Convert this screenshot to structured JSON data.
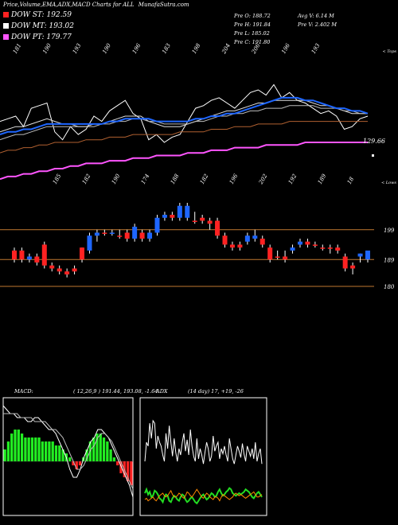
{
  "header": {
    "title": "Price,Volume,EMA,ADX,MACD Charts for ALL",
    "site": "MunafaSutra.com",
    "legend": [
      {
        "label": "DOW ST:",
        "value": "192.59",
        "color": "#ff2222"
      },
      {
        "label": "DOW MT:",
        "value": "193.02",
        "color": "#ffffff"
      },
      {
        "label": "DOW PT:",
        "value": "179.77",
        "color": "#ff55ff"
      }
    ],
    "stats_col1": [
      "Pre  O: 188.72",
      "Pre  H: 191.84",
      "Pre  L: 185.02",
      "Pre  C: 191.80"
    ],
    "stats_col2": [
      "Avg V: 6.14  M",
      "Pre  V: 2.402  M"
    ]
  },
  "chart_data": [
    {
      "type": "line",
      "name": "ema_panel",
      "top_tick_labels": [
        "181",
        "190",
        "193",
        "190",
        "196",
        "183",
        "198",
        "204",
        "206",
        "196",
        "193"
      ],
      "bottom_tick_labels": [
        "185",
        "182",
        "190",
        "174",
        "188",
        "182",
        "196",
        "202",
        "192",
        "189",
        "18"
      ],
      "corner_top": "< Tops",
      "corner_bottom": "< Lows",
      "last_price_label": "129.66",
      "series": [
        {
          "key": "price",
          "color": "#ffffff",
          "values": [
            188,
            189,
            190,
            186,
            193,
            194,
            195,
            184,
            181,
            186,
            183,
            185,
            190,
            188,
            192,
            194,
            196,
            191,
            189,
            181,
            183,
            180,
            182,
            183,
            188,
            193,
            194,
            196,
            197,
            195,
            193,
            196,
            199,
            200,
            198,
            202,
            197,
            199,
            196,
            195,
            193,
            191,
            192,
            190,
            185,
            186,
            189,
            190
          ]
        },
        {
          "key": "ema_short",
          "color": "#dddddd",
          "values": [
            184,
            185,
            186,
            186,
            187,
            188,
            189,
            188,
            187,
            187,
            186,
            186,
            187,
            187,
            188,
            189,
            190,
            190,
            190,
            188,
            187,
            186,
            186,
            186,
            187,
            188,
            189,
            190,
            191,
            192,
            192,
            193,
            194,
            195,
            195,
            196,
            196,
            196,
            196,
            196,
            195,
            194,
            194,
            193,
            192,
            191,
            191,
            191
          ]
        },
        {
          "key": "ema_mid",
          "color": "#bbbbbb",
          "values": [
            181,
            182,
            183,
            183,
            184,
            185,
            186,
            186,
            186,
            186,
            186,
            186,
            186,
            187,
            187,
            188,
            188,
            189,
            189,
            188,
            188,
            187,
            187,
            187,
            187,
            188,
            188,
            189,
            190,
            190,
            191,
            191,
            192,
            192,
            193,
            193,
            193,
            194,
            194,
            194,
            194,
            193,
            193,
            193,
            192,
            192,
            191,
            191
          ]
        },
        {
          "key": "ema_blue",
          "color": "#1e66ff",
          "values": [
            183,
            184,
            184,
            185,
            185,
            186,
            187,
            187,
            187,
            187,
            187,
            187,
            187,
            187,
            188,
            188,
            189,
            189,
            189,
            189,
            188,
            188,
            188,
            188,
            188,
            189,
            189,
            190,
            190,
            191,
            191,
            192,
            193,
            194,
            195,
            196,
            197,
            197,
            197,
            196,
            196,
            195,
            194,
            193,
            193,
            192,
            192,
            191
          ]
        },
        {
          "key": "ema_long",
          "color": "#b06030",
          "values": [
            176,
            177,
            177,
            178,
            178,
            179,
            179,
            180,
            180,
            180,
            180,
            181,
            181,
            181,
            182,
            182,
            182,
            183,
            183,
            183,
            183,
            183,
            183,
            184,
            184,
            184,
            184,
            185,
            185,
            185,
            186,
            186,
            186,
            187,
            187,
            187,
            187,
            188,
            188,
            188,
            188,
            188,
            188,
            188,
            188,
            188,
            188,
            188
          ]
        },
        {
          "key": "ema_pt",
          "color": "#ff55ff",
          "values": [
            166,
            167,
            167,
            168,
            168,
            169,
            169,
            170,
            170,
            171,
            171,
            172,
            172,
            172,
            173,
            173,
            173,
            174,
            174,
            174,
            175,
            175,
            175,
            175,
            176,
            176,
            176,
            177,
            177,
            177,
            178,
            178,
            178,
            178,
            179,
            179,
            179,
            179,
            179,
            180,
            180,
            180,
            180,
            180,
            180,
            180,
            180,
            180
          ]
        }
      ]
    },
    {
      "type": "candlestick",
      "name": "price_panel",
      "ylabels": [
        "199",
        "189",
        "180"
      ],
      "ylevels": [
        199,
        189,
        180
      ],
      "xlabels": [],
      "candles": [
        {
          "o": 189,
          "c": 192,
          "h": 193,
          "l": 188,
          "up": false
        },
        {
          "o": 192,
          "c": 189,
          "h": 193,
          "l": 188,
          "up": false
        },
        {
          "o": 189,
          "c": 190,
          "h": 191,
          "l": 188,
          "up": true
        },
        {
          "o": 190,
          "c": 188,
          "h": 191,
          "l": 187,
          "up": false
        },
        {
          "o": 194,
          "c": 187,
          "h": 195,
          "l": 186,
          "up": false
        },
        {
          "o": 187,
          "c": 186,
          "h": 188,
          "l": 185,
          "up": false
        },
        {
          "o": 186,
          "c": 185,
          "h": 187,
          "l": 184,
          "up": false
        },
        {
          "o": 185,
          "c": 184,
          "h": 186,
          "l": 183,
          "up": false
        },
        {
          "o": 186,
          "c": 185,
          "h": 187,
          "l": 184,
          "up": false
        },
        {
          "o": 193,
          "c": 189,
          "h": 193,
          "l": 188,
          "up": false
        },
        {
          "o": 192,
          "c": 197,
          "h": 198,
          "l": 191,
          "up": true
        },
        {
          "o": 197,
          "c": 198,
          "h": 199,
          "l": 195,
          "up": true
        },
        {
          "o": 198,
          "c": 198,
          "h": 199,
          "l": 197,
          "up": false
        },
        {
          "o": 198,
          "c": 198,
          "h": 199,
          "l": 197,
          "up": true
        },
        {
          "o": 197,
          "c": 197,
          "h": 199,
          "l": 196,
          "up": false
        },
        {
          "o": 198,
          "c": 196,
          "h": 199,
          "l": 195,
          "up": false
        },
        {
          "o": 196,
          "c": 200,
          "h": 201,
          "l": 195,
          "up": true
        },
        {
          "o": 198,
          "c": 196,
          "h": 199,
          "l": 195,
          "up": false
        },
        {
          "o": 196,
          "c": 198,
          "h": 199,
          "l": 195,
          "up": true
        },
        {
          "o": 198,
          "c": 203,
          "h": 204,
          "l": 197,
          "up": true
        },
        {
          "o": 203,
          "c": 204,
          "h": 205,
          "l": 202,
          "up": true
        },
        {
          "o": 204,
          "c": 203,
          "h": 205,
          "l": 202,
          "up": false
        },
        {
          "o": 203,
          "c": 207,
          "h": 208,
          "l": 202,
          "up": true
        },
        {
          "o": 207,
          "c": 203,
          "h": 208,
          "l": 202,
          "up": true
        },
        {
          "o": 202,
          "c": 202,
          "h": 205,
          "l": 201,
          "up": false
        },
        {
          "o": 203,
          "c": 202,
          "h": 204,
          "l": 201,
          "up": false
        },
        {
          "o": 202,
          "c": 201,
          "h": 203,
          "l": 199,
          "up": false
        },
        {
          "o": 202,
          "c": 197,
          "h": 203,
          "l": 196,
          "up": false
        },
        {
          "o": 197,
          "c": 194,
          "h": 198,
          "l": 193,
          "up": false
        },
        {
          "o": 194,
          "c": 193,
          "h": 195,
          "l": 192,
          "up": false
        },
        {
          "o": 194,
          "c": 193,
          "h": 195,
          "l": 192,
          "up": false
        },
        {
          "o": 195,
          "c": 197,
          "h": 198,
          "l": 194,
          "up": true
        },
        {
          "o": 197,
          "c": 196,
          "h": 199,
          "l": 195,
          "up": true
        },
        {
          "o": 196,
          "c": 194,
          "h": 197,
          "l": 193,
          "up": false
        },
        {
          "o": 193,
          "c": 189,
          "h": 194,
          "l": 188,
          "up": false
        },
        {
          "o": 190,
          "c": 190,
          "h": 192,
          "l": 189,
          "up": false
        },
        {
          "o": 190,
          "c": 189,
          "h": 192,
          "l": 188,
          "up": false
        },
        {
          "o": 192,
          "c": 193,
          "h": 194,
          "l": 191,
          "up": true
        },
        {
          "o": 194,
          "c": 195,
          "h": 196,
          "l": 193,
          "up": true
        },
        {
          "o": 195,
          "c": 194,
          "h": 196,
          "l": 193,
          "up": false
        },
        {
          "o": 194,
          "c": 194,
          "h": 195,
          "l": 193,
          "up": false
        },
        {
          "o": 193,
          "c": 193,
          "h": 194,
          "l": 192,
          "up": false
        },
        {
          "o": 193,
          "c": 193,
          "h": 194,
          "l": 191,
          "up": false
        },
        {
          "o": 193,
          "c": 192,
          "h": 194,
          "l": 191,
          "up": false
        },
        {
          "o": 190,
          "c": 186,
          "h": 191,
          "l": 185,
          "up": false
        },
        {
          "o": 187,
          "c": 186,
          "h": 188,
          "l": 184,
          "up": false
        },
        {
          "o": 190,
          "c": 191,
          "h": 191,
          "l": 188,
          "up": true
        },
        {
          "o": 189,
          "c": 192,
          "h": 192,
          "l": 188,
          "up": true
        }
      ]
    },
    {
      "type": "bar",
      "name": "macd_panel",
      "title": "MACD:",
      "params": "( 12,26,9 ) 191.44,  193.08,  -1.64",
      "histogram": [
        3,
        5,
        7,
        8,
        8,
        7,
        6,
        6,
        6,
        6,
        6,
        5,
        5,
        5,
        5,
        4,
        4,
        3,
        2,
        1,
        -1,
        -2,
        -1,
        1,
        3,
        5,
        6,
        7,
        7,
        6,
        5,
        3,
        1,
        -1,
        -3,
        -4,
        -5,
        -6
      ],
      "macd_line": [
        14,
        13,
        12,
        12,
        11,
        11,
        11,
        10,
        10,
        11,
        11,
        10,
        9,
        8,
        8,
        7,
        5,
        3,
        1,
        -2,
        -4,
        -4,
        -2,
        1,
        3,
        5,
        6,
        8,
        8,
        7,
        6,
        4,
        2,
        0,
        -2,
        -4,
        -6,
        -9
      ],
      "signal_line": [
        12,
        12,
        12,
        12,
        12,
        11,
        11,
        11,
        11,
        10,
        10,
        10,
        10,
        9,
        8,
        8,
        7,
        6,
        4,
        2,
        0,
        -2,
        -2,
        -1,
        1,
        3,
        4,
        6,
        7,
        7,
        6,
        5,
        3,
        1,
        -1,
        -3,
        -5,
        -7
      ]
    },
    {
      "type": "line",
      "name": "adx_panel",
      "title": "ADX",
      "params": "(14  day) 17,  +19,  -26",
      "series": [
        {
          "key": "adx",
          "color": "#ffffff",
          "values": [
            40,
            55,
            52,
            70,
            58,
            72,
            70,
            50,
            60,
            55,
            52,
            45,
            40,
            62,
            50,
            68,
            55,
            44,
            58,
            47,
            40,
            50,
            45,
            55,
            62,
            48,
            57,
            45,
            65,
            52,
            44,
            40,
            58,
            42,
            50,
            45,
            38,
            47,
            55,
            50,
            40,
            44,
            60,
            48,
            52,
            55,
            42,
            50,
            46,
            52,
            45,
            40,
            58,
            50,
            42,
            38,
            45,
            52,
            48,
            43,
            54,
            46,
            40,
            52,
            48,
            44,
            50,
            42,
            55,
            40,
            46,
            50,
            38
          ]
        },
        {
          "key": "plus_di",
          "color": "#22dd22",
          "values": [
            15,
            18,
            14,
            16,
            12,
            13,
            17,
            16,
            14,
            11,
            10,
            8,
            12,
            14,
            13,
            9,
            8,
            11,
            13,
            12,
            10,
            9,
            12,
            14,
            13,
            10,
            8,
            9,
            11,
            12,
            10,
            8,
            7,
            9,
            11,
            13,
            14,
            12,
            10,
            11,
            13,
            15,
            14,
            12,
            13,
            16,
            18,
            15,
            13,
            14,
            16,
            17,
            19,
            18,
            15,
            14,
            13,
            14,
            15,
            14,
            15,
            16,
            18,
            17,
            16,
            14,
            12,
            11,
            13,
            15,
            16,
            14,
            12
          ]
        },
        {
          "key": "minus_di",
          "color": "#ff8800",
          "values": [
            10,
            11,
            9,
            10,
            11,
            12,
            10,
            9,
            11,
            13,
            14,
            15,
            13,
            12,
            13,
            15,
            17,
            14,
            12,
            12,
            13,
            15,
            14,
            12,
            11,
            13,
            16,
            15,
            13,
            12,
            14,
            16,
            18,
            16,
            14,
            12,
            11,
            13,
            15,
            14,
            12,
            11,
            10,
            12,
            12,
            11,
            9,
            12,
            14,
            13,
            12,
            11,
            10,
            11,
            12,
            14,
            15,
            14,
            13,
            14,
            13,
            12,
            11,
            12,
            13,
            14,
            15,
            16,
            14,
            12,
            12,
            13,
            14
          ]
        }
      ]
    }
  ]
}
